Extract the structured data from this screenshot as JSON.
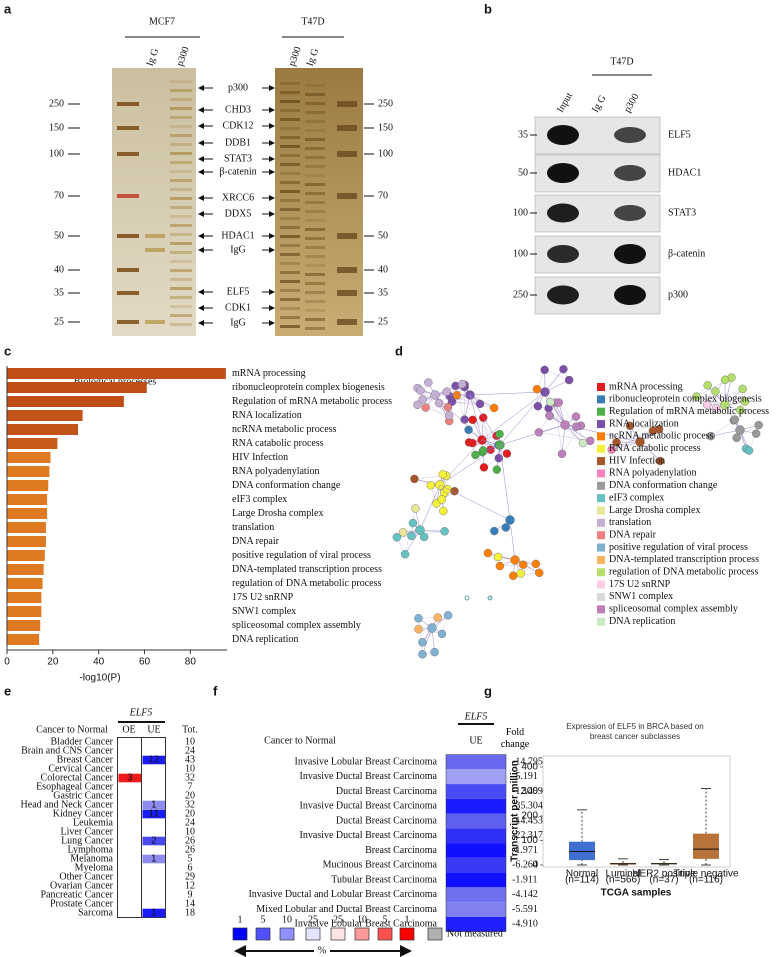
{
  "a": {
    "label": "a",
    "groups": [
      {
        "name": "MCF7",
        "lanes": [
          "Ig G",
          "p300"
        ]
      },
      {
        "name": "T47D",
        "lanes": [
          "p300",
          "Ig G"
        ]
      }
    ],
    "markers_left": [
      250,
      150,
      100,
      70,
      50,
      40,
      35,
      25
    ],
    "markers_right": [
      250,
      150,
      100,
      70,
      50,
      40,
      35,
      25
    ],
    "proteins": [
      "p300",
      "CHD3",
      "CDK12",
      "DDB1",
      "STAT3",
      "β-catenin",
      "XRCC6",
      "DDX5",
      "HDAC1",
      "IgG",
      "ELF5",
      "CDK1",
      "IgG"
    ]
  },
  "b": {
    "label": "b",
    "cell": "T47D",
    "lanes": [
      "Input",
      "Ig G",
      "p300"
    ],
    "blots": [
      {
        "marker": 35,
        "protein": "ELF5"
      },
      {
        "marker": 50,
        "protein": "HDAC1"
      },
      {
        "marker": 100,
        "protein": "STAT3"
      },
      {
        "marker": 100,
        "protein": "β-catenin"
      },
      {
        "marker": 250,
        "protein": "p300"
      }
    ]
  },
  "c": {
    "label": "c",
    "title": "Biological processes",
    "categories": [
      "mRNA processing",
      "ribonucleoprotein complex biogenesis",
      "Regulation of mRNA metabolic process",
      "RNA localization",
      "ncRNA metabolic process",
      "RNA catabolic process",
      "HIV Infection",
      "RNA polyadenylation",
      "DNA conformation change",
      "eIF3 complex",
      "Large Drosha complex",
      "translation",
      "DNA repair",
      "positive regulation of viral process",
      "DNA-templated transcription process",
      "regulation of DNA metabolic process",
      "17S U2 snRNP",
      "SNW1 complex",
      "spliceosomal complex assembly",
      "DNA replication"
    ],
    "values": [
      95.5,
      61,
      51,
      33,
      31,
      22,
      19,
      18.5,
      18,
      17.5,
      17.5,
      17,
      17,
      16.5,
      16,
      15.5,
      15,
      15,
      14.5,
      14
    ],
    "colors": [
      "#bf4f17",
      "#bf4f17",
      "#bf4f17",
      "#c2541a",
      "#c2541a",
      "#c85a1a",
      "#e07a22",
      "#e07a22",
      "#e07a22",
      "#e07a22",
      "#e07a22",
      "#e07a22",
      "#e07a22",
      "#e07a22",
      "#e07a22",
      "#e07a22",
      "#e07a22",
      "#e07a22",
      "#e07a22",
      "#e07a22"
    ],
    "xlim": [
      0,
      96
    ],
    "xticks": [
      0,
      20,
      40,
      60,
      80
    ],
    "xlabel": "-log10(P)"
  },
  "d": {
    "label": "d",
    "legend": [
      {
        "name": "mRNA processing",
        "color": "#e41a1c"
      },
      {
        "name": "ribonucleoprotein complex biogenesis",
        "color": "#377eb8"
      },
      {
        "name": "Regulation of mRNA metabolic process",
        "color": "#4daf4a"
      },
      {
        "name": "RNA localization",
        "color": "#7b4fa8"
      },
      {
        "name": "ncRNA metabolic process",
        "color": "#ff7f00"
      },
      {
        "name": "RNA catabolic process",
        "color": "#f5f03a"
      },
      {
        "name": "HIV Infection",
        "color": "#a65628"
      },
      {
        "name": "RNA polyadenylation",
        "color": "#f781bf"
      },
      {
        "name": "DNA conformation change",
        "color": "#999999"
      },
      {
        "name": "eIF3 complex",
        "color": "#66c2c2"
      },
      {
        "name": "Large Drosha complex",
        "color": "#e8e89a"
      },
      {
        "name": "translation",
        "color": "#c5b0d5"
      },
      {
        "name": "DNA repair",
        "color": "#f08080"
      },
      {
        "name": "positive regulation of viral process",
        "color": "#80b1d3"
      },
      {
        "name": "DNA-templated transcription process",
        "color": "#fdb462"
      },
      {
        "name": "regulation of DNA metabolic process",
        "color": "#b3de69"
      },
      {
        "name": "17S U2 snRNP",
        "color": "#fccde5"
      },
      {
        "name": "SNW1 complex",
        "color": "#d9d9d9"
      },
      {
        "name": "spliceosomal complex assembly",
        "color": "#bc80bd"
      },
      {
        "name": "DNA replication",
        "color": "#ccebc5"
      }
    ]
  },
  "e": {
    "label": "e",
    "gene": "ELF5",
    "headers": [
      "Cancer to Normal",
      "OE",
      "UE",
      "Tot."
    ],
    "rows": [
      {
        "name": "Bladder Cancer",
        "total": "10"
      },
      {
        "name": "Brain and CNS Cancer",
        "total": "24"
      },
      {
        "name": "Breast Cancer",
        "ue": {
          "value": "12",
          "color": "#1a1aff"
        },
        "total": "43"
      },
      {
        "name": "Cervical Cancer",
        "total": "10"
      },
      {
        "name": "Colorectal Cancer",
        "oe": {
          "value": "3",
          "color": "#f01818"
        },
        "total": "32"
      },
      {
        "name": "Esophageal Cancer",
        "total": "7"
      },
      {
        "name": "Gastric Cancer",
        "total": "20"
      },
      {
        "name": "Head and Neck Cancer",
        "ue": {
          "value": "1",
          "color": "#8c8cf0"
        },
        "total": "32"
      },
      {
        "name": "Kidney Cancer",
        "ue": {
          "value": "11",
          "color": "#1a1aff"
        },
        "total": "20"
      },
      {
        "name": "Leukemia",
        "total": "24"
      },
      {
        "name": "Liver Cancer",
        "total": "10"
      },
      {
        "name": "Lung Cancer",
        "ue": {
          "value": "2",
          "color": "#4a4af0"
        },
        "total": "26"
      },
      {
        "name": "Lymphoma",
        "total": "26"
      },
      {
        "name": "Melanoma",
        "ue": {
          "value": "1",
          "color": "#8c8cf0"
        },
        "total": "5"
      },
      {
        "name": "Myeloma",
        "total": "6"
      },
      {
        "name": "Other Cancer",
        "total": "29"
      },
      {
        "name": "Ovarian Cancer",
        "total": "12"
      },
      {
        "name": "Pancreatic Cancer",
        "total": "9"
      },
      {
        "name": "Prostate Cancer",
        "total": "14"
      },
      {
        "name": "Sarcoma",
        "ue": {
          "value": "1",
          "color": "#1a1aff"
        },
        "total": "18"
      }
    ]
  },
  "f": {
    "label": "f",
    "gene": "ELF5",
    "headers": [
      "Cancer to Normal",
      "UE",
      "Fold change"
    ],
    "rows": [
      {
        "name": "Invasive Lobular Breast Carcinoma",
        "fold_change": "-14.795",
        "color": "#6a6af0"
      },
      {
        "name": "Invasive Ductal Breast Carcinoma",
        "fold_change": "-5.191",
        "color": "#a0a0f5"
      },
      {
        "name": "Ductal Breast Carcinoma",
        "fold_change": "-12.499",
        "color": "#4a4af5"
      },
      {
        "name": "Invasive Ductal Breast Carcinoma",
        "fold_change": "-35.304",
        "color": "#1a1aff"
      },
      {
        "name": "Ductal Breast Carcinoma",
        "fold_change": "-14.453",
        "color": "#6060f0"
      },
      {
        "name": "Invasive Ductal Breast Carcinoma",
        "fold_change": "-22.317",
        "color": "#3030f8"
      },
      {
        "name": "Breast Carcinoma",
        "fold_change": "-1.971",
        "color": "#1010ff"
      },
      {
        "name": "Mucinous Breast Carcinoma",
        "fold_change": "-6.264",
        "color": "#3a3af5"
      },
      {
        "name": "Tubular Breast Carcinoma",
        "fold_change": "-1.911",
        "color": "#1010ff"
      },
      {
        "name": "Invasive Ductal and Lobular Breast Carcinoma",
        "fold_change": "-4.142",
        "color": "#7070f0"
      },
      {
        "name": "Mixed Lobular and Ductal Breast Carcinoma",
        "fold_change": "-5.591",
        "color": "#8080f0"
      },
      {
        "name": "Invasive Lobular Breast Carcinoma",
        "fold_change": "-4.910",
        "color": "#2020ff"
      }
    ],
    "scale": [
      {
        "label": "1",
        "color": "#0000ff"
      },
      {
        "label": "5",
        "color": "#5050ff"
      },
      {
        "label": "10",
        "color": "#9090ff"
      },
      {
        "label": "25",
        "color": "#e4e4ff"
      },
      {
        "label": "25",
        "color": "#ffe4e4"
      },
      {
        "label": "10",
        "color": "#ff9a9a"
      },
      {
        "label": "5",
        "color": "#ff5050"
      },
      {
        "label": "1",
        "color": "#ff0000"
      }
    ],
    "unit": "%",
    "na_label": "Not measured",
    "na_color": "#b0b0b0"
  },
  "g": {
    "label": "g",
    "title": "Expression of ELF5 in BRCA based on breast cancer subclasses",
    "ylabel": "Transcript per million",
    "xlabel": "TCGA samples",
    "ylim": [
      0,
      400
    ],
    "yticks": [
      0,
      100,
      200,
      300,
      400
    ],
    "categories": [
      {
        "name": "Normal",
        "n": "(n=114)"
      },
      {
        "name": "Luminal",
        "n": "(n=566)"
      },
      {
        "name": "HER2 positive",
        "n": "(n=37)"
      },
      {
        "name": "Triple negative",
        "n": "(n=116)"
      }
    ],
    "boxes": [
      {
        "min": 0,
        "q1": 20,
        "median": 55,
        "q3": 95,
        "max": 225
      },
      {
        "min": 0,
        "q1": 2,
        "median": 5,
        "q3": 8,
        "max": 25
      },
      {
        "min": 0,
        "q1": 3,
        "median": 5,
        "q3": 8,
        "max": 22
      },
      {
        "min": 0,
        "q1": 25,
        "median": 65,
        "q3": 128,
        "max": 312
      }
    ],
    "colors": [
      "#3f6fd0",
      "#e07020",
      "#6aa020",
      "#b8733a"
    ]
  }
}
